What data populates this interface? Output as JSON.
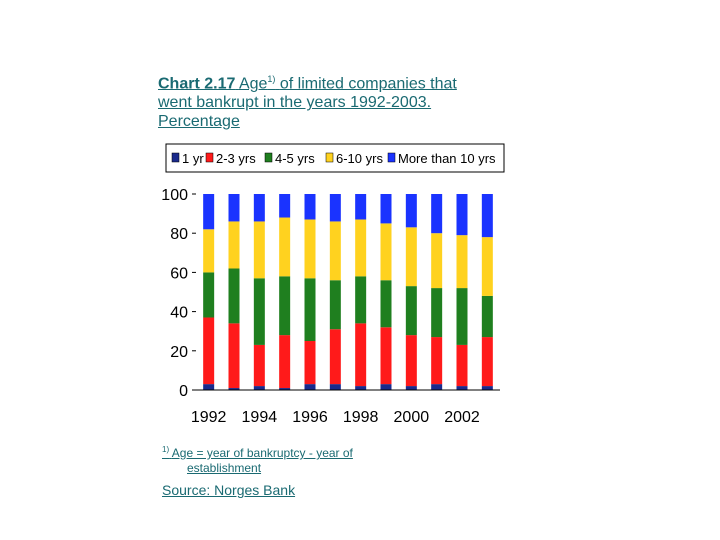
{
  "title": {
    "prefix": "Chart 2.17",
    "age": "Age",
    "footnote_mark": "1)",
    "rest": "of limited companies that went bankrupt in the years 1992-2003. Percentage"
  },
  "footnote": {
    "mark": "1)",
    "line1": "Age = year of bankruptcy - year of",
    "line2": "establishment"
  },
  "source": "Source: Norges Bank",
  "chart_data": {
    "type": "bar",
    "stacked": true,
    "categories": [
      "1992",
      "1993",
      "1994",
      "1995",
      "1996",
      "1997",
      "1998",
      "1999",
      "2000",
      "2001",
      "2002",
      "2003"
    ],
    "x_tick_labels": [
      "1992",
      "1994",
      "1996",
      "1998",
      "2000",
      "2002"
    ],
    "ylim": [
      0,
      100
    ],
    "y_ticks": [
      "0",
      "20",
      "40",
      "60",
      "80",
      "100"
    ],
    "legend_position": "top",
    "series": [
      {
        "name": "1 yr",
        "color": "#1a2a8c",
        "values": [
          3,
          1,
          2,
          1,
          3,
          3,
          2,
          3,
          2,
          3,
          2,
          2
        ]
      },
      {
        "name": "2-3 yrs",
        "color": "#ff1a1a",
        "values": [
          34,
          33,
          21,
          27,
          22,
          28,
          32,
          29,
          26,
          24,
          21,
          25
        ]
      },
      {
        "name": "4-5 yrs",
        "color": "#1f7f1f",
        "values": [
          23,
          28,
          34,
          30,
          32,
          25,
          24,
          24,
          25,
          25,
          29,
          21
        ]
      },
      {
        "name": "6-10 yrs",
        "color": "#ffd21f",
        "values": [
          22,
          24,
          29,
          30,
          30,
          30,
          29,
          29,
          30,
          28,
          27,
          30
        ]
      },
      {
        "name": "More than 10 yrs",
        "color": "#1a33ff",
        "values": [
          18,
          14,
          14,
          12,
          13,
          14,
          13,
          15,
          17,
          20,
          21,
          22
        ]
      }
    ]
  }
}
